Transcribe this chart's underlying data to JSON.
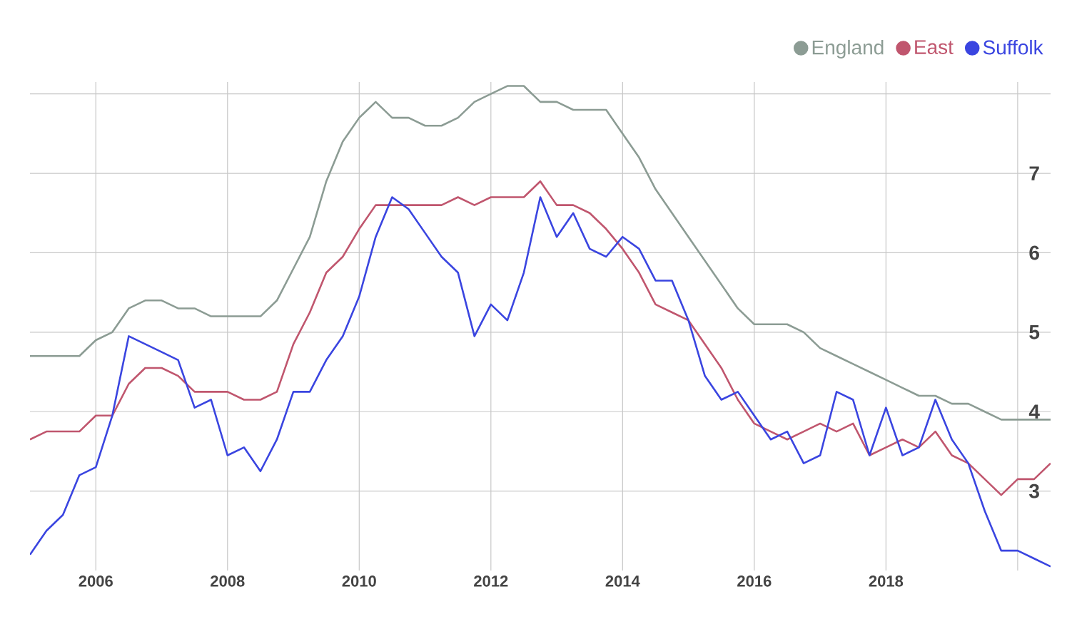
{
  "chart_data": {
    "type": "line",
    "x": [
      2005.0,
      2005.25,
      2005.5,
      2005.75,
      2006.0,
      2006.25,
      2006.5,
      2006.75,
      2007.0,
      2007.25,
      2007.5,
      2007.75,
      2008.0,
      2008.25,
      2008.5,
      2008.75,
      2009.0,
      2009.25,
      2009.5,
      2009.75,
      2010.0,
      2010.25,
      2010.5,
      2010.75,
      2011.0,
      2011.25,
      2011.5,
      2011.75,
      2012.0,
      2012.25,
      2012.5,
      2012.75,
      2013.0,
      2013.25,
      2013.5,
      2013.75,
      2014.0,
      2014.25,
      2014.5,
      2014.75,
      2015.0,
      2015.25,
      2015.5,
      2015.75,
      2016.0,
      2016.25,
      2016.5,
      2016.75,
      2017.0,
      2017.25,
      2017.5,
      2017.75,
      2018.0,
      2018.25,
      2018.5,
      2018.75,
      2019.0,
      2019.25,
      2019.5,
      2019.75,
      2020.0,
      2020.25,
      2020.5
    ],
    "series": [
      {
        "name": "England",
        "color": "#8c9c94",
        "values": [
          4.7,
          4.7,
          4.7,
          4.7,
          4.9,
          5.0,
          5.3,
          5.4,
          5.4,
          5.3,
          5.3,
          5.2,
          5.2,
          5.2,
          5.2,
          5.4,
          5.8,
          6.2,
          6.9,
          7.4,
          7.7,
          7.9,
          7.7,
          7.7,
          7.6,
          7.6,
          7.7,
          7.9,
          8.0,
          8.1,
          8.1,
          7.9,
          7.9,
          7.8,
          7.8,
          7.8,
          7.5,
          7.2,
          6.8,
          6.5,
          6.2,
          5.9,
          5.6,
          5.3,
          5.1,
          5.1,
          5.1,
          5.0,
          4.8,
          4.7,
          4.6,
          4.5,
          4.4,
          4.3,
          4.2,
          4.2,
          4.1,
          4.1,
          4.0,
          3.9,
          3.9,
          3.9,
          3.9
        ]
      },
      {
        "name": "East",
        "color": "#c0566e",
        "values": [
          3.65,
          3.75,
          3.75,
          3.75,
          3.95,
          3.95,
          4.35,
          4.55,
          4.55,
          4.45,
          4.25,
          4.25,
          4.25,
          4.15,
          4.15,
          4.25,
          4.85,
          5.25,
          5.75,
          5.95,
          6.3,
          6.6,
          6.6,
          6.6,
          6.6,
          6.6,
          6.7,
          6.6,
          6.7,
          6.7,
          6.7,
          6.9,
          6.6,
          6.6,
          6.5,
          6.3,
          6.05,
          5.75,
          5.35,
          5.25,
          5.15,
          4.85,
          4.55,
          4.15,
          3.85,
          3.75,
          3.65,
          3.75,
          3.85,
          3.75,
          3.85,
          3.45,
          3.55,
          3.65,
          3.55,
          3.75,
          3.45,
          3.35,
          3.15,
          2.95,
          3.15,
          3.15,
          3.35
        ]
      },
      {
        "name": "Suffolk",
        "color": "#3a45e0",
        "values": [
          2.2,
          2.5,
          2.7,
          3.2,
          3.3,
          3.95,
          4.95,
          4.85,
          4.75,
          4.65,
          4.05,
          4.15,
          3.45,
          3.55,
          3.25,
          3.65,
          4.25,
          4.25,
          4.65,
          4.95,
          5.45,
          6.2,
          6.7,
          6.55,
          6.25,
          5.95,
          5.75,
          4.95,
          5.35,
          5.15,
          5.75,
          6.7,
          6.2,
          6.5,
          6.05,
          5.95,
          6.2,
          6.05,
          5.65,
          5.65,
          5.15,
          4.45,
          4.15,
          4.25,
          3.95,
          3.65,
          3.75,
          3.35,
          3.45,
          4.25,
          4.15,
          3.45,
          4.05,
          3.45,
          3.55,
          4.15,
          3.65,
          3.35,
          2.75,
          2.25,
          2.25,
          2.15,
          2.05
        ]
      }
    ],
    "xlim": [
      2005.0,
      2020.5
    ],
    "ylim": [
      2.0,
      8.15
    ],
    "xticks": [
      2006,
      2008,
      2010,
      2012,
      2014,
      2016,
      2018,
      {
        "value": 2020,
        "label": null
      }
    ],
    "yticks": [
      3,
      4,
      5,
      6,
      7,
      {
        "value": 8,
        "label": null
      }
    ],
    "grid": true,
    "legend": "top right"
  }
}
